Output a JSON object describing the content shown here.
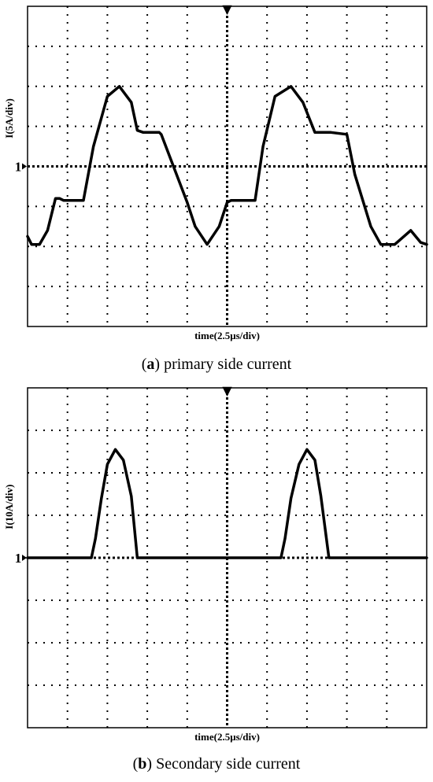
{
  "captions": {
    "a_letter": "a",
    "a_text": " primary side current",
    "b_letter": "b",
    "b_text": " Secondary side current"
  },
  "chart_data": [
    {
      "type": "line",
      "title": "",
      "xlabel": "time(2.5μs/div)",
      "ylabel": "I(5A/div)",
      "x_unit": "div",
      "y_unit": "div",
      "xlim": [
        0,
        10
      ],
      "ylim": [
        -4,
        4
      ],
      "ground_marker": "1",
      "trigger_marker": "▼",
      "grid": "dotted",
      "series": [
        {
          "x": [
            0,
            0.1,
            0.3,
            0.5,
            0.7,
            0.8,
            0.9,
            1.4,
            1.65,
            2.0,
            2.3,
            2.6,
            2.75,
            2.9,
            3.1,
            3.3,
            3.35,
            4.0,
            4.2,
            4.5,
            4.8,
            5.0,
            5.1,
            5.3,
            5.7,
            5.9,
            6.2,
            6.6,
            6.9,
            7.2,
            7.6,
            8.0,
            8.2,
            8.6,
            8.85,
            9.2,
            9.6,
            9.85,
            10.0
          ],
          "y": [
            -1.75,
            -1.95,
            -1.95,
            -1.6,
            -0.8,
            -0.8,
            -0.85,
            -0.85,
            0.5,
            1.75,
            2.0,
            1.6,
            0.9,
            0.85,
            0.85,
            0.85,
            0.8,
            -0.9,
            -1.5,
            -1.95,
            -1.5,
            -0.9,
            -0.85,
            -0.85,
            -0.85,
            0.5,
            1.75,
            2.0,
            1.6,
            0.85,
            0.85,
            0.8,
            -0.2,
            -1.5,
            -1.95,
            -1.95,
            -1.6,
            -1.9,
            -1.95
          ]
        }
      ]
    },
    {
      "type": "line",
      "title": "",
      "xlabel": "time(2.5μs/div)",
      "ylabel": "I(10A/div)",
      "x_unit": "div",
      "y_unit": "div",
      "xlim": [
        0,
        10
      ],
      "ylim": [
        -4,
        4
      ],
      "ground_marker": "1",
      "trigger_marker": "▼",
      "grid": "dotted",
      "series": [
        {
          "x": [
            0,
            1.6,
            1.7,
            1.85,
            2.0,
            2.2,
            2.4,
            2.6,
            2.75,
            3.1,
            6.35,
            6.45,
            6.6,
            6.8,
            7.0,
            7.2,
            7.35,
            7.55,
            7.9,
            10.0
          ],
          "y": [
            0,
            0,
            0.45,
            1.4,
            2.2,
            2.55,
            2.3,
            1.45,
            0,
            0,
            0,
            0.45,
            1.4,
            2.2,
            2.55,
            2.3,
            1.45,
            0,
            0,
            0
          ]
        }
      ]
    }
  ]
}
